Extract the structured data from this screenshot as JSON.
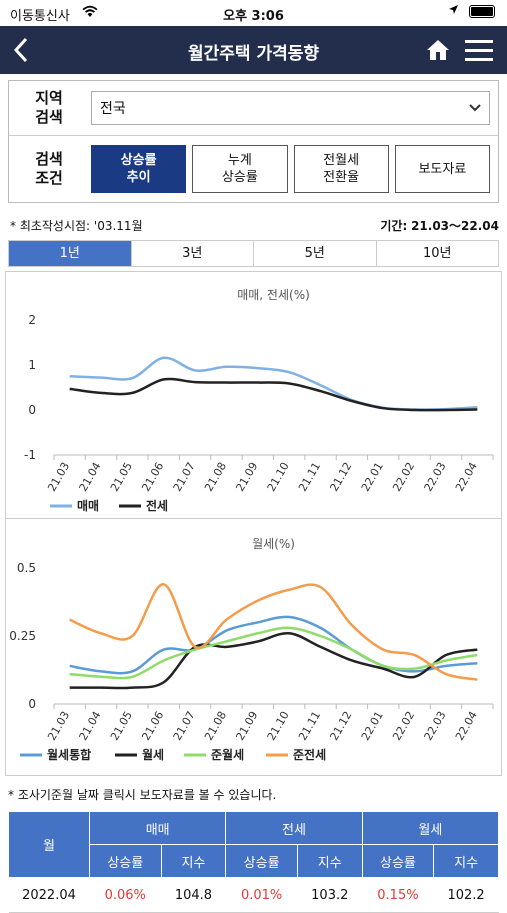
{
  "status_bar": {
    "carrier": "이동통신사",
    "time": "오후 3:06"
  },
  "header": {
    "title": "월간주택 가격동향"
  },
  "search": {
    "region_label_1": "지역",
    "region_label_2": "검색",
    "region_value": "전국",
    "condition_label_1": "검색",
    "condition_label_2": "조건",
    "buttons": [
      {
        "line1": "상승률",
        "line2": "추이"
      },
      {
        "line1": "누계",
        "line2": "상승률"
      },
      {
        "line1": "전월세",
        "line2": "전환율"
      },
      {
        "line1": "보도자료",
        "line2": ""
      }
    ]
  },
  "info": {
    "first_written": "* 최초작성시점: '03.11월",
    "period_label": "기간:",
    "period_value": "21.03～22.04"
  },
  "tabs": [
    "1년",
    "3년",
    "5년",
    "10년"
  ],
  "chart_data": [
    {
      "type": "line",
      "title": "매매, 전세(%)",
      "categories": [
        "21.03",
        "21.04",
        "21.05",
        "21.06",
        "21.07",
        "21.08",
        "21.09",
        "21.10",
        "21.11",
        "21.12",
        "22.01",
        "22.02",
        "22.03",
        "22.04"
      ],
      "ylim": [
        -1,
        2
      ],
      "yticks": [
        "2",
        "1",
        "0",
        "-1"
      ],
      "legend_position": "bottom-left",
      "series": [
        {
          "name": "매매",
          "color": "#7fb1e4",
          "values": [
            0.75,
            0.72,
            0.71,
            1.16,
            0.88,
            0.96,
            0.93,
            0.84,
            0.55,
            0.22,
            0.05,
            0.01,
            0.02,
            0.06
          ]
        },
        {
          "name": "전세",
          "color": "#222222",
          "values": [
            0.47,
            0.38,
            0.38,
            0.68,
            0.62,
            0.61,
            0.61,
            0.59,
            0.42,
            0.2,
            0.04,
            0.0,
            0.0,
            0.01
          ]
        }
      ]
    },
    {
      "type": "line",
      "title": "월세(%)",
      "categories": [
        "21.03",
        "21.04",
        "21.05",
        "21.06",
        "21.07",
        "21.08",
        "21.09",
        "21.10",
        "21.11",
        "21.12",
        "22.01",
        "22.02",
        "22.03",
        "22.04"
      ],
      "ylim": [
        0,
        0.5
      ],
      "yticks": [
        "0.5",
        "0.25",
        "0"
      ],
      "legend_position": "bottom-left",
      "series": [
        {
          "name": "월세통합",
          "color": "#5b9bd5",
          "values": [
            0.14,
            0.12,
            0.12,
            0.2,
            0.2,
            0.27,
            0.3,
            0.32,
            0.28,
            0.2,
            0.14,
            0.12,
            0.14,
            0.15
          ]
        },
        {
          "name": "월세",
          "color": "#222222",
          "values": [
            0.06,
            0.06,
            0.06,
            0.08,
            0.21,
            0.21,
            0.23,
            0.26,
            0.21,
            0.16,
            0.13,
            0.1,
            0.18,
            0.2
          ]
        },
        {
          "name": "준월세",
          "color": "#8fdc6a",
          "values": [
            0.11,
            0.1,
            0.1,
            0.16,
            0.2,
            0.23,
            0.26,
            0.28,
            0.25,
            0.2,
            0.14,
            0.13,
            0.16,
            0.18
          ]
        },
        {
          "name": "준전세",
          "color": "#f39c4a",
          "values": [
            0.31,
            0.26,
            0.25,
            0.44,
            0.21,
            0.31,
            0.38,
            0.42,
            0.43,
            0.29,
            0.2,
            0.18,
            0.11,
            0.09
          ]
        }
      ]
    }
  ],
  "note": "* 조사기준월 날짜 클릭시 보도자료를 볼 수 있습니다.",
  "table": {
    "col_month": "월",
    "groups": [
      "매매",
      "전세",
      "월세"
    ],
    "sub": [
      "상승률",
      "지수"
    ],
    "rows": [
      {
        "month": "2022.04",
        "sale_rate": "0.06%",
        "sale_index": "104.8",
        "jeonse_rate": "0.01%",
        "jeonse_index": "103.2",
        "rent_rate": "0.15%",
        "rent_index": "102.2"
      }
    ]
  },
  "colors": {
    "header_bg": "#232e4d",
    "active_button": "#1b3a84",
    "tab_active": "#4472c4",
    "rate_red": "#e53935"
  }
}
